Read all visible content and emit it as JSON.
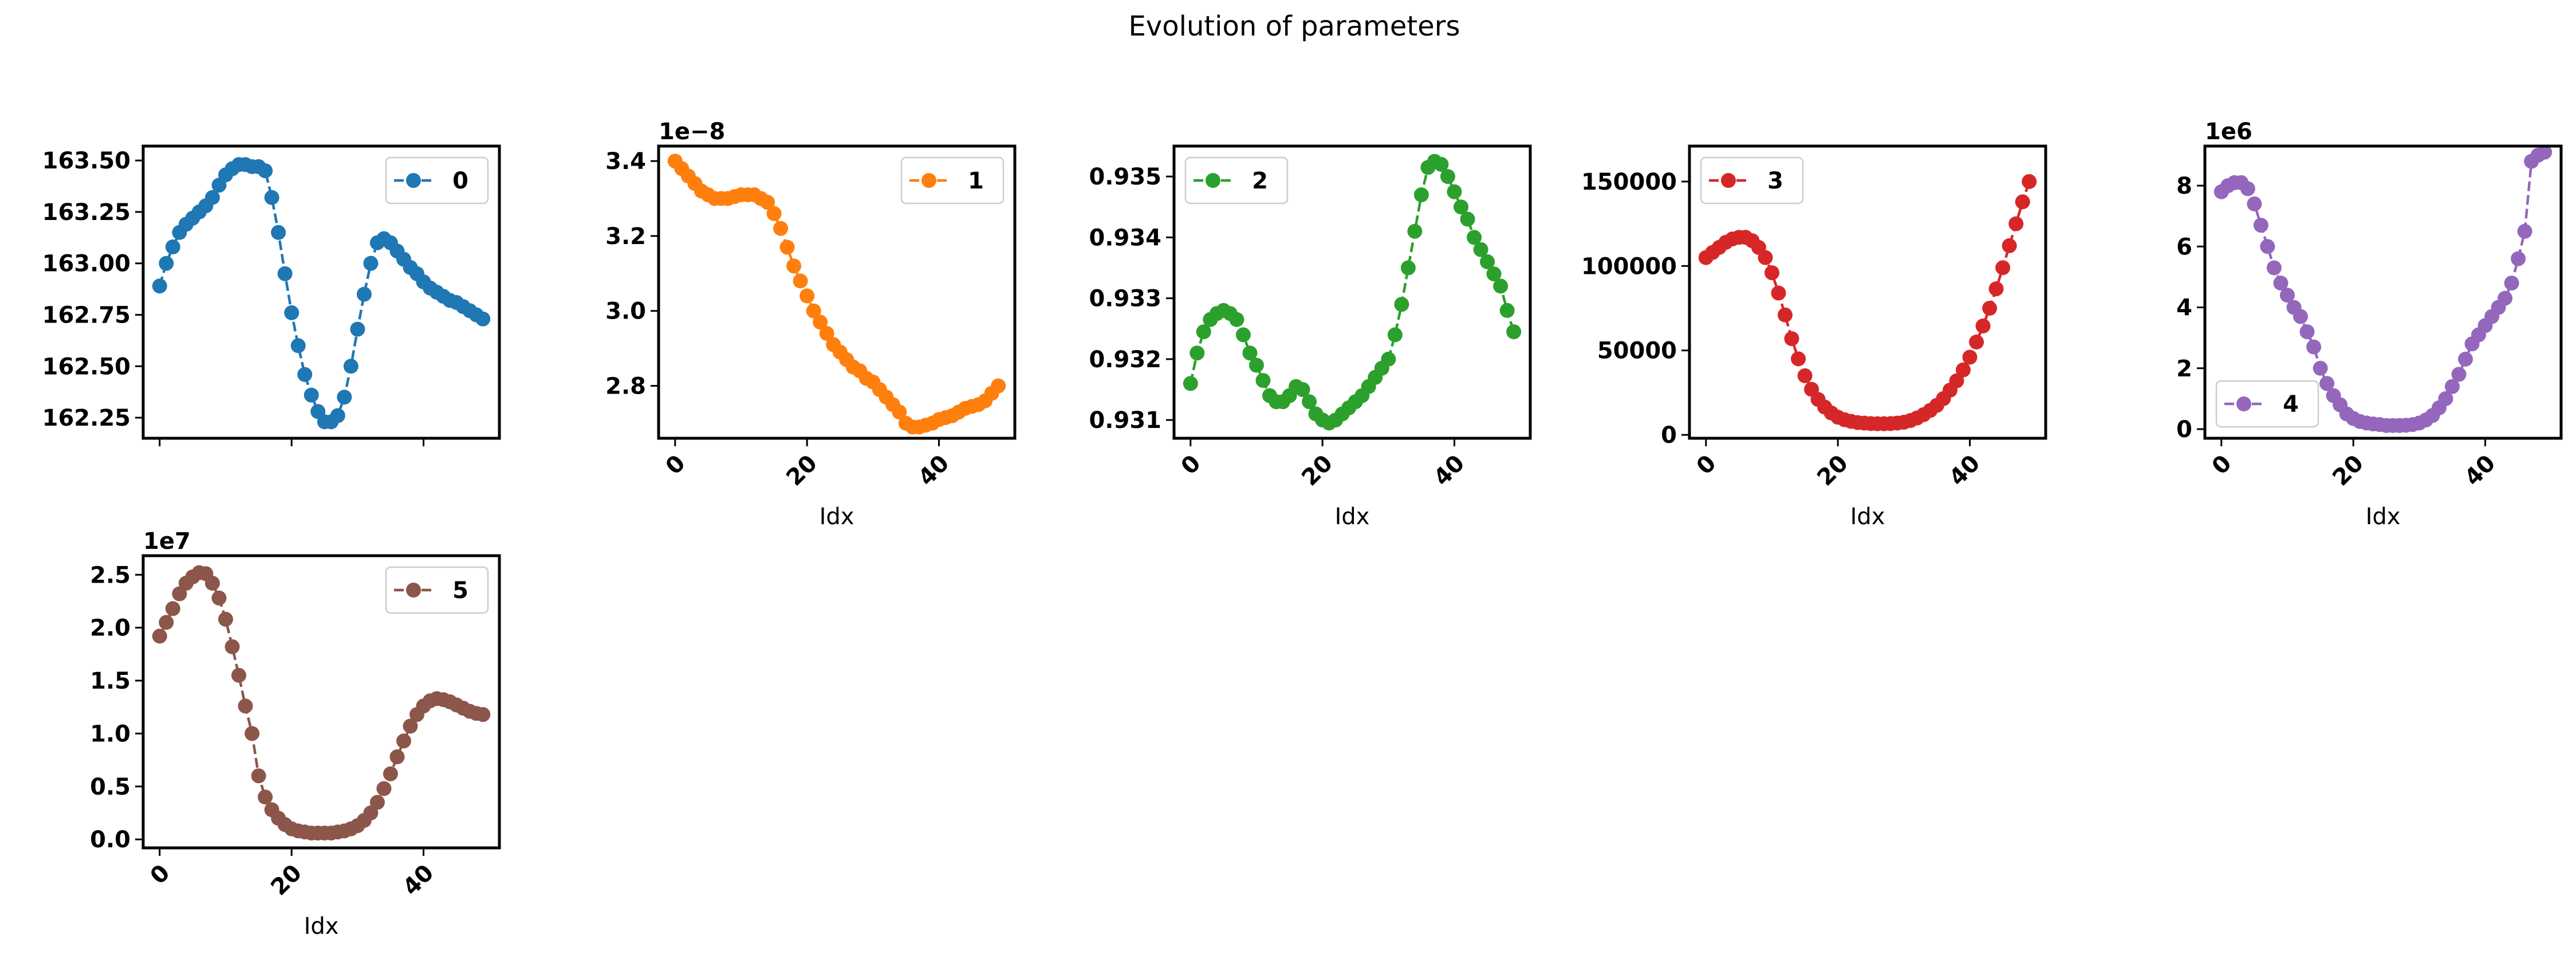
{
  "figure": {
    "title": "Evolution of parameters"
  },
  "chart_data": [
    {
      "type": "line",
      "name": "0",
      "color": "#1f77b4",
      "legend_loc": "upper-right",
      "xlabel": "",
      "show_xticklabels": false,
      "offset_text": "",
      "xlim": [
        -2.5,
        51.5
      ],
      "ylim": [
        162.15,
        163.57
      ],
      "xticks": [
        "0",
        "20",
        "40"
      ],
      "xtick_values": [
        0,
        20,
        40
      ],
      "yticks": [
        "162.25",
        "162.50",
        "162.75",
        "163.00",
        "163.25",
        "163.50"
      ],
      "ytick_values": [
        162.25,
        162.5,
        162.75,
        163.0,
        163.25,
        163.5
      ],
      "x": [
        0,
        1,
        2,
        3,
        4,
        5,
        6,
        7,
        8,
        9,
        10,
        11,
        12,
        13,
        14,
        15,
        16,
        17,
        18,
        19,
        20,
        21,
        22,
        23,
        24,
        25,
        26,
        27,
        28,
        29,
        30,
        31,
        32,
        33,
        34,
        35,
        36,
        37,
        38,
        39,
        40,
        41,
        42,
        43,
        44,
        45,
        46,
        47,
        48,
        49
      ],
      "y": [
        162.89,
        163.0,
        163.08,
        163.15,
        163.19,
        163.22,
        163.25,
        163.28,
        163.32,
        163.38,
        163.43,
        163.46,
        163.48,
        163.48,
        163.47,
        163.47,
        163.45,
        163.32,
        163.15,
        162.95,
        162.76,
        162.6,
        162.46,
        162.36,
        162.28,
        162.23,
        162.23,
        162.26,
        162.35,
        162.5,
        162.68,
        162.85,
        163.0,
        163.1,
        163.12,
        163.1,
        163.06,
        163.02,
        162.98,
        162.95,
        162.91,
        162.88,
        162.86,
        162.84,
        162.82,
        162.81,
        162.79,
        162.77,
        162.75,
        162.73
      ]
    },
    {
      "type": "line",
      "name": "1",
      "color": "#ff7f0e",
      "legend_loc": "upper-right",
      "xlabel": "Idx",
      "show_xticklabels": true,
      "offset_text": "1e−8",
      "xlim": [
        -2.5,
        51.5
      ],
      "ylim": [
        2.66,
        3.44
      ],
      "xticks": [
        "0",
        "20",
        "40"
      ],
      "xtick_values": [
        0,
        20,
        40
      ],
      "yticks": [
        "2.8",
        "3.0",
        "3.2",
        "3.4"
      ],
      "ytick_values": [
        2.8,
        3.0,
        3.2,
        3.4
      ],
      "x": [
        0,
        1,
        2,
        3,
        4,
        5,
        6,
        7,
        8,
        9,
        10,
        11,
        12,
        13,
        14,
        15,
        16,
        17,
        18,
        19,
        20,
        21,
        22,
        23,
        24,
        25,
        26,
        27,
        28,
        29,
        30,
        31,
        32,
        33,
        34,
        35,
        36,
        37,
        38,
        39,
        40,
        41,
        42,
        43,
        44,
        45,
        46,
        47,
        48,
        49
      ],
      "y": [
        3.4,
        3.38,
        3.36,
        3.34,
        3.32,
        3.31,
        3.3,
        3.3,
        3.3,
        3.305,
        3.31,
        3.31,
        3.31,
        3.3,
        3.29,
        3.26,
        3.22,
        3.17,
        3.12,
        3.08,
        3.04,
        3.0,
        2.97,
        2.94,
        2.91,
        2.89,
        2.87,
        2.85,
        2.84,
        2.82,
        2.81,
        2.79,
        2.77,
        2.75,
        2.73,
        2.7,
        2.69,
        2.69,
        2.695,
        2.7,
        2.71,
        2.715,
        2.72,
        2.73,
        2.74,
        2.745,
        2.75,
        2.76,
        2.78,
        2.8
      ]
    },
    {
      "type": "line",
      "name": "2",
      "color": "#2ca02c",
      "legend_loc": "upper-left",
      "xlabel": "Idx",
      "show_xticklabels": true,
      "offset_text": "",
      "xlim": [
        -2.5,
        51.5
      ],
      "ylim": [
        0.9307,
        0.9355
      ],
      "xticks": [
        "0",
        "20",
        "40"
      ],
      "xtick_values": [
        0,
        20,
        40
      ],
      "yticks": [
        "0.931",
        "0.932",
        "0.933",
        "0.934",
        "0.935"
      ],
      "ytick_values": [
        0.931,
        0.932,
        0.933,
        0.934,
        0.935
      ],
      "x": [
        0,
        1,
        2,
        3,
        4,
        5,
        6,
        7,
        8,
        9,
        10,
        11,
        12,
        13,
        14,
        15,
        16,
        17,
        18,
        19,
        20,
        21,
        22,
        23,
        24,
        25,
        26,
        27,
        28,
        29,
        30,
        31,
        32,
        33,
        34,
        35,
        36,
        37,
        38,
        39,
        40,
        41,
        42,
        43,
        44,
        45,
        46,
        47,
        48,
        49
      ],
      "y": [
        0.9316,
        0.9321,
        0.93245,
        0.93265,
        0.93275,
        0.9328,
        0.93275,
        0.93265,
        0.9324,
        0.9321,
        0.9319,
        0.93165,
        0.9314,
        0.9313,
        0.9313,
        0.9314,
        0.93155,
        0.9315,
        0.9313,
        0.9311,
        0.931,
        0.93095,
        0.931,
        0.9311,
        0.9312,
        0.9313,
        0.9314,
        0.93155,
        0.9317,
        0.93185,
        0.932,
        0.9324,
        0.9329,
        0.9335,
        0.9341,
        0.9347,
        0.93515,
        0.93525,
        0.9352,
        0.935,
        0.93475,
        0.9345,
        0.9343,
        0.934,
        0.9338,
        0.9336,
        0.9334,
        0.9332,
        0.9328,
        0.93245
      ]
    },
    {
      "type": "line",
      "name": "3",
      "color": "#d62728",
      "legend_loc": "upper-left",
      "xlabel": "Idx",
      "show_xticklabels": true,
      "offset_text": "",
      "xlim": [
        -2.5,
        51.5
      ],
      "ylim": [
        -2000,
        171000
      ],
      "xticks": [
        "0",
        "20",
        "40"
      ],
      "xtick_values": [
        0,
        20,
        40
      ],
      "yticks": [
        "0",
        "50000",
        "100000",
        "150000"
      ],
      "ytick_values": [
        0,
        50000,
        100000,
        150000
      ],
      "x": [
        0,
        1,
        2,
        3,
        4,
        5,
        6,
        7,
        8,
        9,
        10,
        11,
        12,
        13,
        14,
        15,
        16,
        17,
        18,
        19,
        20,
        21,
        22,
        23,
        24,
        25,
        26,
        27,
        28,
        29,
        30,
        31,
        32,
        33,
        34,
        35,
        36,
        37,
        38,
        39,
        40,
        41,
        42,
        43,
        44,
        45,
        46,
        47,
        48,
        49
      ],
      "y": [
        105000,
        108000,
        111000,
        114000,
        116000,
        117000,
        117000,
        115000,
        111000,
        105000,
        96000,
        84000,
        71000,
        57000,
        45000,
        35000,
        27000,
        21000,
        16500,
        13000,
        10500,
        9000,
        8000,
        7300,
        7000,
        6700,
        6600,
        6600,
        6700,
        7000,
        7500,
        8500,
        10000,
        12000,
        14500,
        17500,
        21500,
        26500,
        32000,
        38500,
        46000,
        55000,
        64500,
        75000,
        86500,
        99000,
        112000,
        125000,
        138000,
        150000
      ]
    },
    {
      "type": "line",
      "name": "4",
      "color": "#9467bd",
      "legend_loc": "lower-left",
      "xlabel": "Idx",
      "show_xticklabels": true,
      "offset_text": "1e6",
      "xlim": [
        -2.5,
        51.5
      ],
      "ylim": [
        -0.3,
        9.3
      ],
      "xticks": [
        "0",
        "20",
        "40"
      ],
      "xtick_values": [
        0,
        20,
        40
      ],
      "yticks": [
        "0",
        "2",
        "4",
        "6",
        "8"
      ],
      "ytick_values": [
        0,
        2,
        4,
        6,
        8
      ],
      "x": [
        0,
        1,
        2,
        3,
        4,
        5,
        6,
        7,
        8,
        9,
        10,
        11,
        12,
        13,
        14,
        15,
        16,
        17,
        18,
        19,
        20,
        21,
        22,
        23,
        24,
        25,
        26,
        27,
        28,
        29,
        30,
        31,
        32,
        33,
        34,
        35,
        36,
        37,
        38,
        39,
        40,
        41,
        42,
        43,
        44,
        45,
        46,
        47,
        48,
        49
      ],
      "y": [
        7.8,
        8.0,
        8.1,
        8.1,
        7.9,
        7.4,
        6.7,
        6.0,
        5.3,
        4.8,
        4.4,
        4.0,
        3.7,
        3.2,
        2.7,
        2.0,
        1.5,
        1.1,
        0.8,
        0.5,
        0.35,
        0.25,
        0.2,
        0.17,
        0.15,
        0.12,
        0.12,
        0.12,
        0.13,
        0.15,
        0.2,
        0.3,
        0.45,
        0.7,
        1.0,
        1.4,
        1.8,
        2.3,
        2.8,
        3.1,
        3.4,
        3.7,
        4.0,
        4.3,
        4.8,
        5.6,
        6.5,
        8.8,
        9.0,
        9.1
      ]
    },
    {
      "type": "line",
      "name": "5",
      "color": "#8c564b",
      "legend_loc": "upper-right",
      "xlabel": "Idx",
      "show_xticklabels": true,
      "offset_text": "1e7",
      "xlim": [
        -2.5,
        51.5
      ],
      "ylim": [
        -0.08,
        2.68
      ],
      "xticks": [
        "0",
        "20",
        "40"
      ],
      "xtick_values": [
        0,
        20,
        40
      ],
      "yticks": [
        "0.0",
        "0.5",
        "1.0",
        "1.5",
        "2.0",
        "2.5"
      ],
      "ytick_values": [
        0.0,
        0.5,
        1.0,
        1.5,
        2.0,
        2.5
      ],
      "x": [
        0,
        1,
        2,
        3,
        4,
        5,
        6,
        7,
        8,
        9,
        10,
        11,
        12,
        13,
        14,
        15,
        16,
        17,
        18,
        19,
        20,
        21,
        22,
        23,
        24,
        25,
        26,
        27,
        28,
        29,
        30,
        31,
        32,
        33,
        34,
        35,
        36,
        37,
        38,
        39,
        40,
        41,
        42,
        43,
        44,
        45,
        46,
        47,
        48,
        49
      ],
      "y": [
        1.92,
        2.05,
        2.18,
        2.32,
        2.42,
        2.48,
        2.52,
        2.51,
        2.42,
        2.28,
        2.08,
        1.82,
        1.55,
        1.26,
        1.0,
        0.6,
        0.4,
        0.28,
        0.2,
        0.14,
        0.1,
        0.08,
        0.07,
        0.06,
        0.06,
        0.06,
        0.06,
        0.07,
        0.08,
        0.1,
        0.13,
        0.18,
        0.25,
        0.35,
        0.48,
        0.62,
        0.78,
        0.93,
        1.07,
        1.18,
        1.26,
        1.31,
        1.33,
        1.32,
        1.3,
        1.27,
        1.24,
        1.21,
        1.19,
        1.18
      ]
    }
  ]
}
